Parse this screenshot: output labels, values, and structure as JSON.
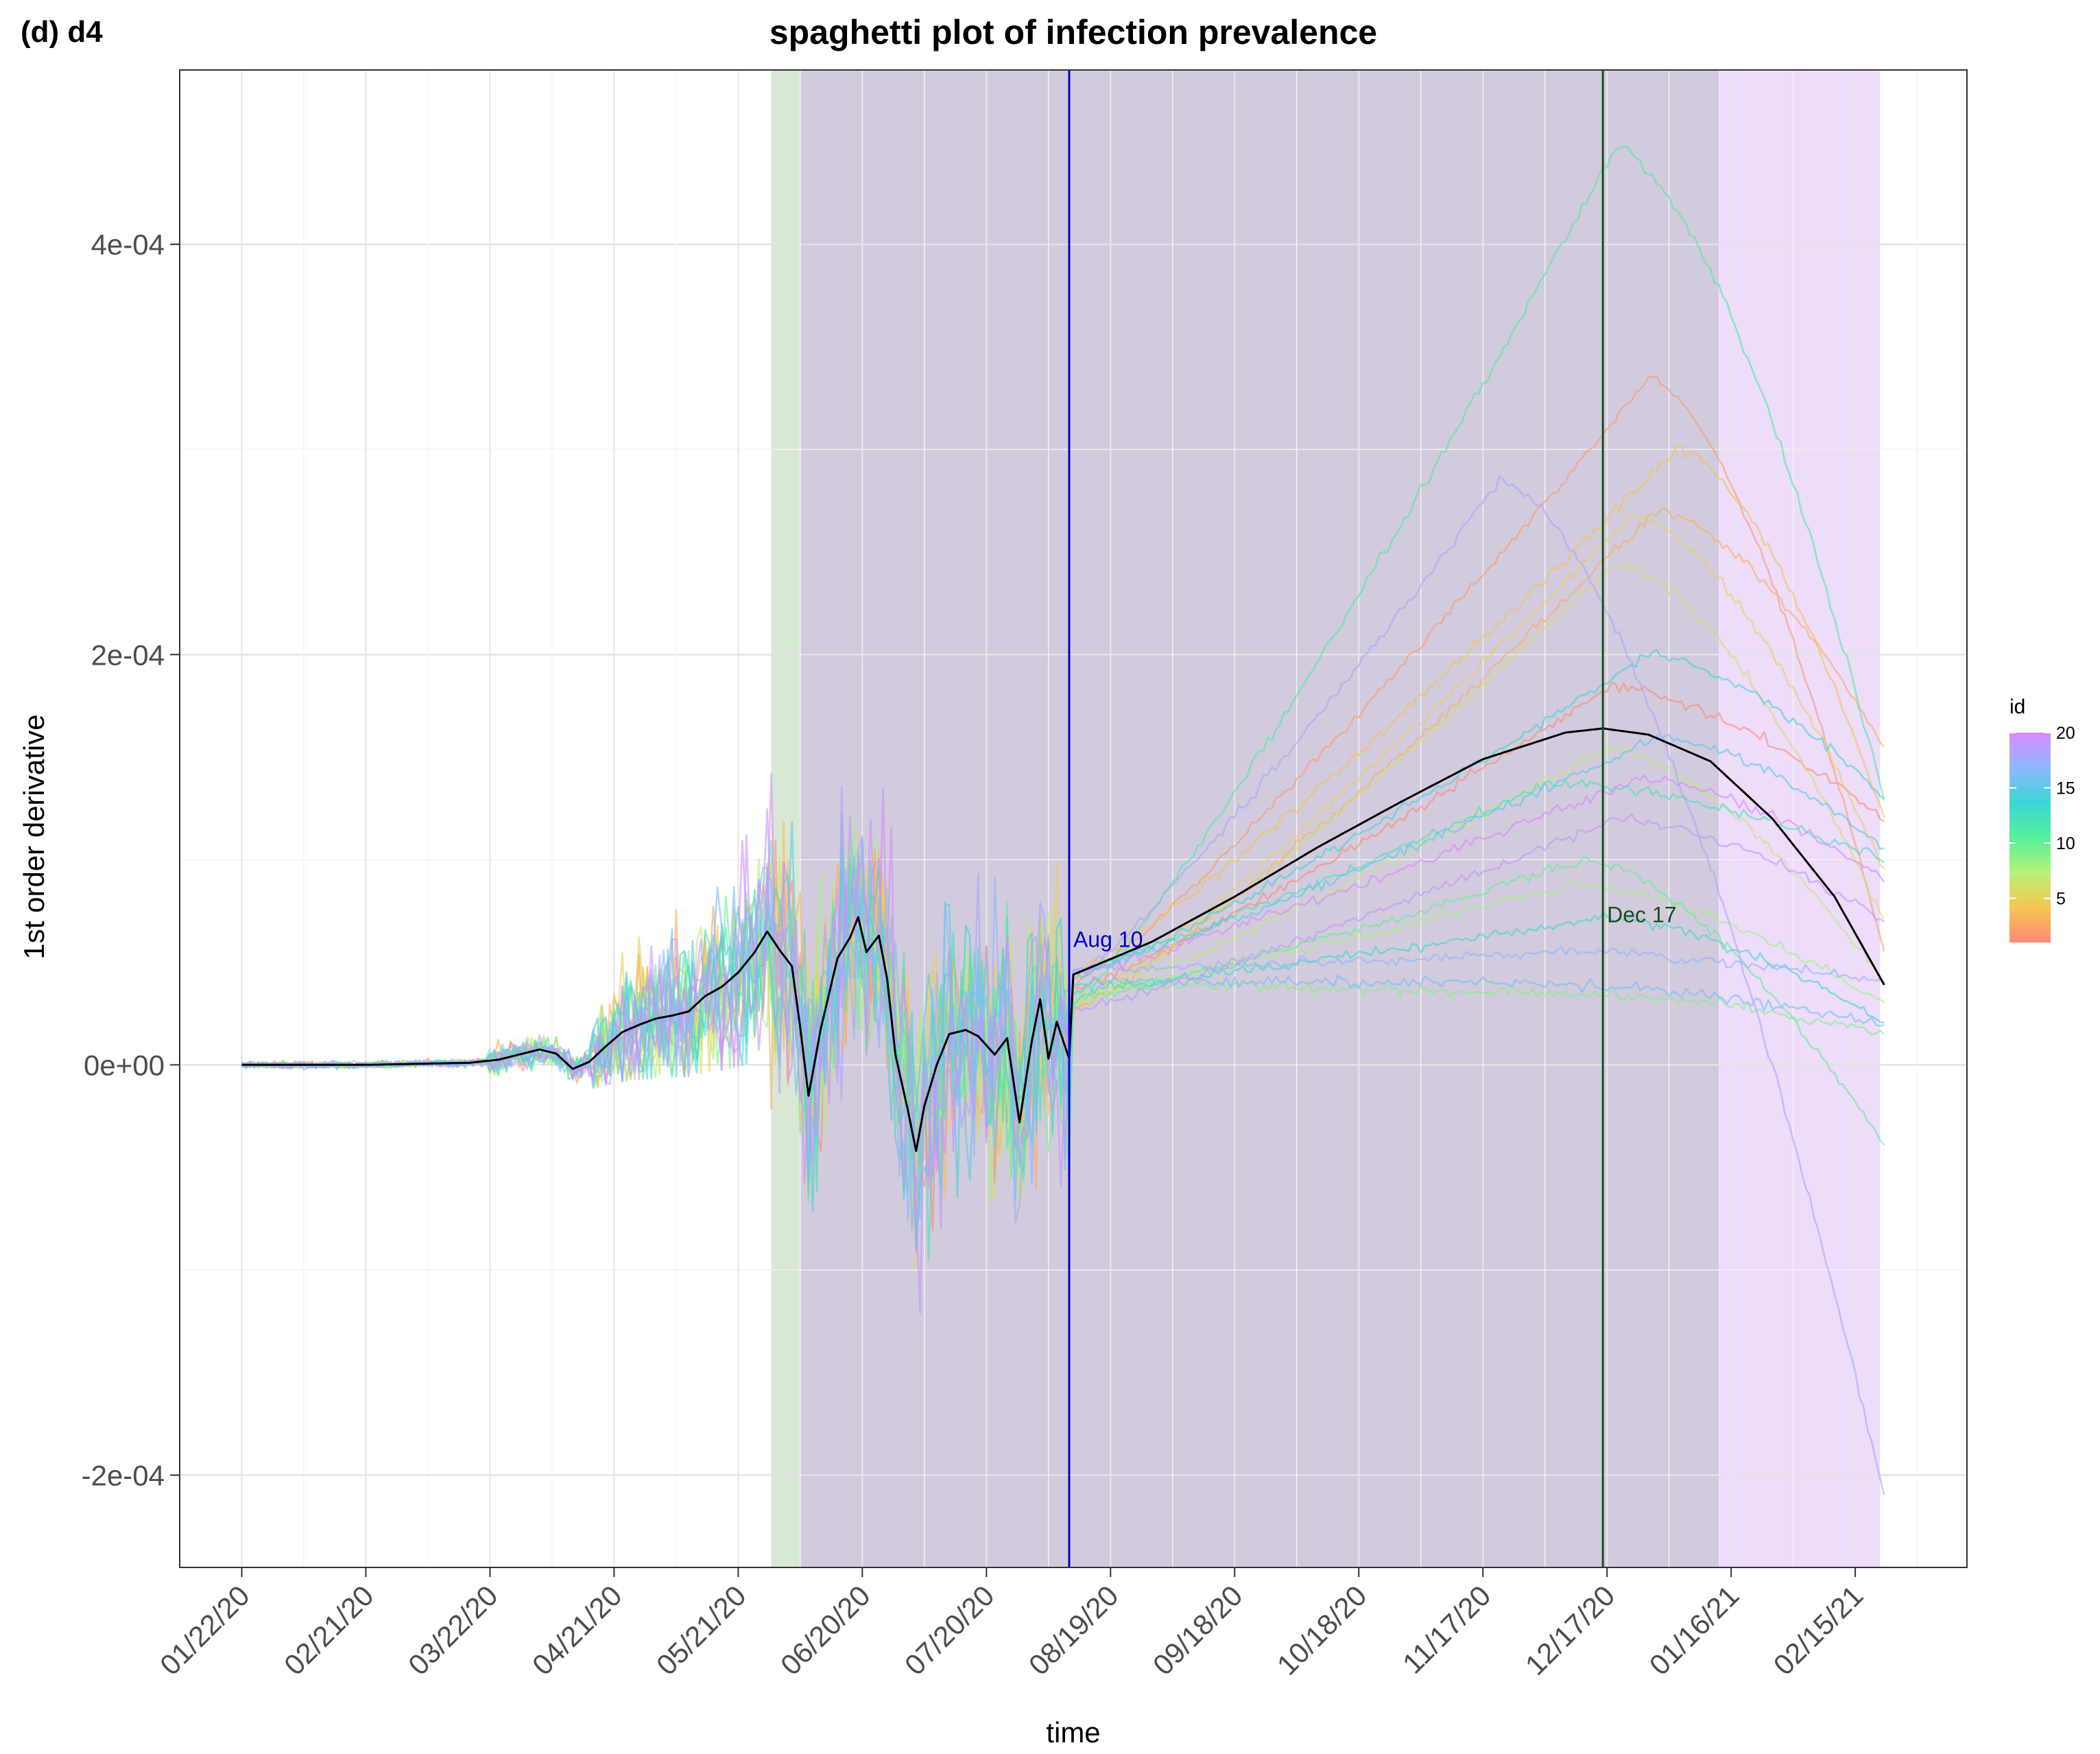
{
  "panel_tag": "(d)  d4",
  "chart_data": {
    "type": "line",
    "title": "spaghetti plot of infection prevalence",
    "xlabel": "time",
    "ylabel": "1st order derivative",
    "x_start_date": "2020-01-22",
    "x_range_days": [
      -15,
      417
    ],
    "ylim": [
      -0.000245,
      0.000485
    ],
    "x_ticks": [
      {
        "day": 0,
        "label": "01/22/20"
      },
      {
        "day": 30,
        "label": "02/21/20"
      },
      {
        "day": 60,
        "label": "03/22/20"
      },
      {
        "day": 90,
        "label": "04/21/20"
      },
      {
        "day": 120,
        "label": "05/21/20"
      },
      {
        "day": 150,
        "label": "06/20/20"
      },
      {
        "day": 180,
        "label": "07/20/20"
      },
      {
        "day": 210,
        "label": "08/19/20"
      },
      {
        "day": 240,
        "label": "09/18/20"
      },
      {
        "day": 270,
        "label": "10/18/20"
      },
      {
        "day": 300,
        "label": "11/17/20"
      },
      {
        "day": 330,
        "label": "12/17/20"
      },
      {
        "day": 360,
        "label": "01/16/21"
      },
      {
        "day": 390,
        "label": "02/15/21"
      }
    ],
    "y_ticks": [
      {
        "value": 0.0004,
        "label": "4e-04"
      },
      {
        "value": 0.0002,
        "label": "2e-04"
      },
      {
        "value": 0.0,
        "label": "0e+00"
      },
      {
        "value": -0.0002,
        "label": "-2e-04"
      }
    ],
    "shaded_regions": [
      {
        "start_day": 128,
        "end_day": 135,
        "color": "#d9e7d5"
      },
      {
        "start_day": 135,
        "end_day": 357,
        "color": "#d2cbdd"
      },
      {
        "start_day": 357,
        "end_day": 396,
        "color": "#eedcfb"
      }
    ],
    "vlines": [
      {
        "day": 200,
        "label": "Aug 10",
        "color": "#0000cc"
      },
      {
        "day": 329,
        "label": "Dec 17",
        "color": "#1a4d1a"
      }
    ],
    "series_count": 20,
    "mean_curve": [
      [
        0,
        0.0
      ],
      [
        30,
        0.0
      ],
      [
        55,
        1e-06
      ],
      [
        62,
        2.5e-06
      ],
      [
        68,
        5.5e-06
      ],
      [
        72,
        7.5e-06
      ],
      [
        76,
        5.5e-06
      ],
      [
        80,
        -2e-06
      ],
      [
        84,
        1.5e-06
      ],
      [
        88,
        9e-06
      ],
      [
        92,
        1.6e-05
      ],
      [
        96,
        1.95e-05
      ],
      [
        100,
        2.25e-05
      ],
      [
        104,
        2.4e-05
      ],
      [
        108,
        2.6e-05
      ],
      [
        112,
        3.35e-05
      ],
      [
        116,
        3.8e-05
      ],
      [
        120,
        4.5e-05
      ],
      [
        124,
        5.5e-05
      ],
      [
        127,
        6.5e-05
      ],
      [
        130,
        5.6e-05
      ],
      [
        133,
        4.8e-05
      ],
      [
        135,
        1.8e-05
      ],
      [
        137,
        -1.5e-05
      ],
      [
        140,
        1.8e-05
      ],
      [
        144,
        5.2e-05
      ],
      [
        147,
        6.2e-05
      ],
      [
        149,
        7.2e-05
      ],
      [
        151,
        5.5e-05
      ],
      [
        154,
        6.3e-05
      ],
      [
        156,
        4.2e-05
      ],
      [
        158,
        5e-06
      ],
      [
        161,
        -2.2e-05
      ],
      [
        163,
        -4.2e-05
      ],
      [
        165,
        -2e-05
      ],
      [
        168,
        0.0
      ],
      [
        171,
        1.5e-05
      ],
      [
        175,
        1.7e-05
      ],
      [
        178,
        1.4e-05
      ],
      [
        182,
        5e-06
      ],
      [
        185,
        1.3e-05
      ],
      [
        188,
        -2.8e-05
      ],
      [
        191,
        1.2e-05
      ],
      [
        193,
        3.2e-05
      ],
      [
        195,
        3e-06
      ],
      [
        197,
        2.1e-05
      ],
      [
        200,
        3e-06
      ],
      [
        201,
        4.4e-05
      ],
      [
        220,
        6e-05
      ],
      [
        240,
        8.2e-05
      ],
      [
        260,
        0.000106
      ],
      [
        280,
        0.000128
      ],
      [
        300,
        0.000149
      ],
      [
        320,
        0.000162
      ],
      [
        329,
        0.000164
      ],
      [
        340,
        0.000161
      ],
      [
        355,
        0.000148
      ],
      [
        370,
        0.00012
      ],
      [
        385,
        8.2e-05
      ],
      [
        397,
        3.9e-05
      ]
    ],
    "legend": {
      "title": "id",
      "labels": [
        "20",
        "15",
        "10",
        "5"
      ],
      "values": [
        20,
        15,
        10,
        5
      ],
      "range": [
        1,
        20
      ],
      "colors": [
        "#ff8a7a",
        "#f7c550",
        "#b7f27a",
        "#57ef9a",
        "#3ad6d6",
        "#8fb7ff",
        "#d98aff"
      ]
    }
  }
}
